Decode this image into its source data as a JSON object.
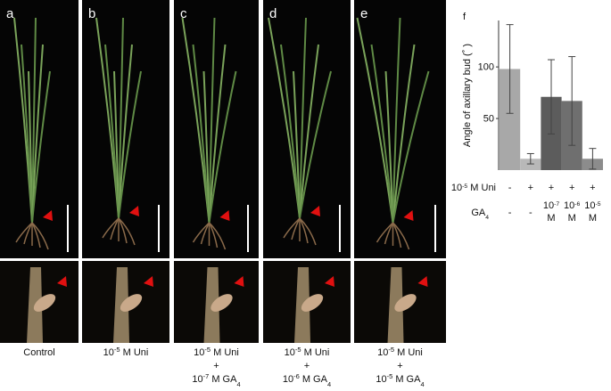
{
  "panels": [
    {
      "label": "a",
      "caption": [
        [
          {
            "text": "Control"
          }
        ]
      ]
    },
    {
      "label": "b",
      "caption": [
        [
          {
            "text": "10"
          },
          {
            "sup": "-5"
          },
          {
            "text": " M Uni"
          }
        ]
      ]
    },
    {
      "label": "c",
      "caption": [
        [
          {
            "text": "10"
          },
          {
            "sup": "-5"
          },
          {
            "text": " M Uni"
          }
        ],
        [
          {
            "text": "+"
          }
        ],
        [
          {
            "text": "10"
          },
          {
            "sup": "-7"
          },
          {
            "text": " M GA"
          },
          {
            "sub": "4"
          }
        ]
      ]
    },
    {
      "label": "d",
      "caption": [
        [
          {
            "text": "10"
          },
          {
            "sup": "-5"
          },
          {
            "text": " M Uni"
          }
        ],
        [
          {
            "text": "+"
          }
        ],
        [
          {
            "text": "10"
          },
          {
            "sup": "-6"
          },
          {
            "text": " M GA"
          },
          {
            "sub": "4"
          }
        ]
      ]
    },
    {
      "label": "e",
      "caption": [
        [
          {
            "text": "10"
          },
          {
            "sup": "-5"
          },
          {
            "text": " M Uni"
          }
        ],
        [
          {
            "text": "+"
          }
        ],
        [
          {
            "text": "10"
          },
          {
            "sup": "-5"
          },
          {
            "text": " M GA"
          },
          {
            "sub": "4"
          }
        ]
      ]
    }
  ],
  "chart_data": {
    "type": "bar",
    "label": "f",
    "y_label": "Angle of axillary bud (˚ )",
    "categories": [
      null,
      null,
      null,
      null,
      null
    ],
    "series": [
      {
        "values": [
          98,
          11,
          71,
          67,
          11
        ],
        "errors": [
          43,
          5,
          36,
          43,
          10
        ],
        "colors": [
          "#a8a8a8",
          "#b8b8b8",
          "#5c5c5c",
          "#6f6f6f",
          "#8c8c8c"
        ]
      }
    ],
    "ylim": [
      0,
      145
    ],
    "yticks": [
      50,
      100
    ],
    "treatments": [
      {
        "label": [
          [
            {
              "text": "10"
            },
            {
              "sup": "-5"
            },
            {
              "text": " M Uni"
            }
          ]
        ],
        "values": [
          [
            [
              {
                "text": "-"
              }
            ]
          ],
          [
            [
              {
                "text": "+"
              }
            ]
          ],
          [
            [
              {
                "text": "+"
              }
            ]
          ],
          [
            [
              {
                "text": "+"
              }
            ]
          ],
          [
            [
              {
                "text": "+"
              }
            ]
          ]
        ]
      },
      {
        "label": [
          [
            {
              "text": "GA"
            },
            {
              "sub": "4"
            }
          ]
        ],
        "values": [
          [
            [
              {
                "text": "-"
              }
            ]
          ],
          [
            [
              {
                "text": "-"
              }
            ]
          ],
          [
            [
              {
                "text": "10"
              },
              {
                "sup": "-7"
              }
            ],
            [
              {
                "text": "M"
              }
            ]
          ],
          [
            [
              {
                "text": "10"
              },
              {
                "sup": "-6"
              }
            ],
            [
              {
                "text": "M"
              }
            ]
          ],
          [
            [
              {
                "text": "10"
              },
              {
                "sup": "-5"
              }
            ],
            [
              {
                "text": "M"
              }
            ]
          ]
        ]
      }
    ]
  }
}
